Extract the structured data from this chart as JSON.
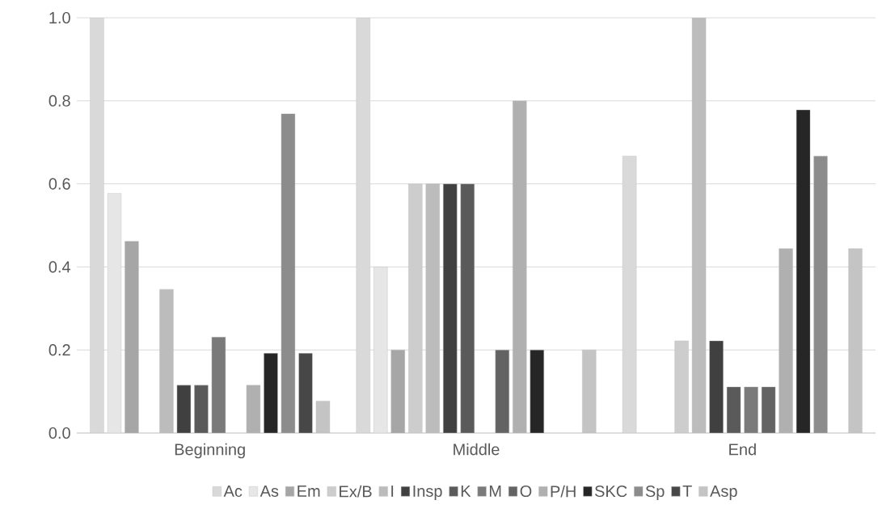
{
  "chart_data": {
    "type": "bar",
    "categories": [
      "Beginning",
      "Middle",
      "End"
    ],
    "series": [
      {
        "name": "Ac",
        "color": "#d9d9d9",
        "values": [
          1.0,
          1.0,
          0.667
        ]
      },
      {
        "name": "As",
        "color": "#e6e6e6",
        "values": [
          0.577,
          0.4,
          null
        ]
      },
      {
        "name": "Em",
        "color": "#a6a6a6",
        "values": [
          0.462,
          0.2,
          null
        ]
      },
      {
        "name": "Ex/B",
        "color": "#cdcdcd",
        "values": [
          null,
          0.6,
          0.222
        ]
      },
      {
        "name": "I",
        "color": "#bcbcbc",
        "values": [
          0.346,
          0.6,
          1.0
        ]
      },
      {
        "name": "Insp",
        "color": "#404040",
        "values": [
          0.115,
          0.6,
          0.222
        ]
      },
      {
        "name": "K",
        "color": "#5a5a5a",
        "values": [
          0.115,
          0.6,
          0.111
        ]
      },
      {
        "name": "M",
        "color": "#7a7a7a",
        "values": [
          0.231,
          null,
          0.111
        ]
      },
      {
        "name": "O",
        "color": "#636363",
        "values": [
          null,
          0.2,
          0.111
        ]
      },
      {
        "name": "P/H",
        "color": "#b0b0b0",
        "values": [
          0.115,
          0.8,
          0.444
        ]
      },
      {
        "name": "SKC",
        "color": "#262626",
        "values": [
          0.192,
          0.2,
          0.778
        ]
      },
      {
        "name": "Sp",
        "color": "#8c8c8c",
        "values": [
          0.769,
          null,
          0.667
        ]
      },
      {
        "name": "T",
        "color": "#474747",
        "values": [
          0.192,
          null,
          null
        ]
      },
      {
        "name": "Asp",
        "color": "#c4c4c4",
        "values": [
          0.077,
          0.2,
          0.444
        ]
      }
    ],
    "ylim": [
      0,
      1
    ],
    "yticks": [
      {
        "value": 0,
        "label": "0.0"
      },
      {
        "value": 0.2,
        "label": "0.2"
      },
      {
        "value": 0.4,
        "label": "0.4"
      },
      {
        "value": 0.6,
        "label": "0.6"
      },
      {
        "value": 0.8,
        "label": "0.8"
      },
      {
        "value": 1,
        "label": "1.0"
      }
    ],
    "grid": "y",
    "legend": "bottom"
  }
}
